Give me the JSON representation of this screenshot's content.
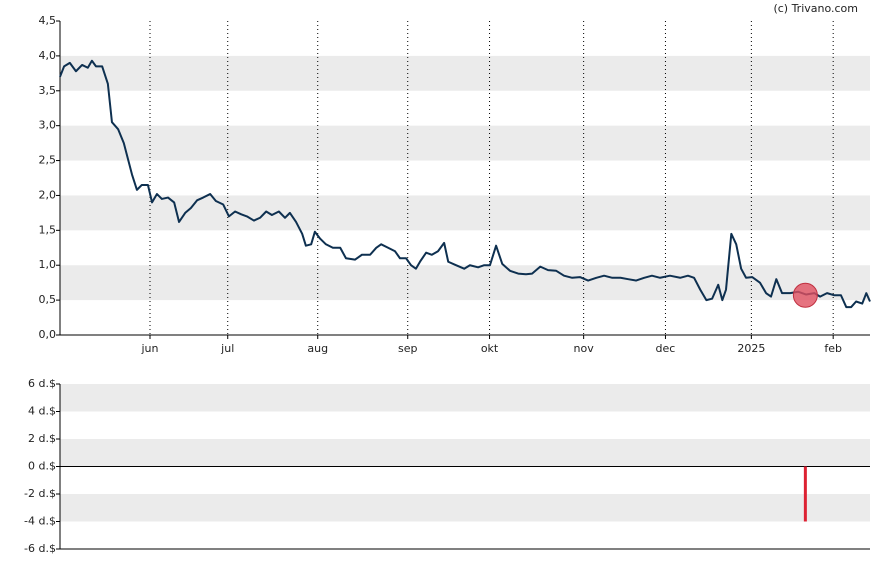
{
  "credit": "(c) Trivano.com",
  "chart_data": [
    {
      "type": "line",
      "x": [
        0,
        1,
        2.4,
        3.9,
        5.4,
        6.8,
        7.8,
        8.8,
        10.3,
        11.7,
        12.7,
        14.2,
        15.6,
        17.6,
        18.8,
        20,
        21.5,
        22.5,
        23.7,
        24.9,
        26.4,
        27.9,
        29.1,
        30.6,
        32,
        33.5,
        35,
        36.7,
        38.1,
        39.9,
        41.3,
        42.8,
        44.3,
        45.7,
        47.4,
        48.9,
        50.4,
        51.8,
        53.5,
        55,
        56.2,
        57.7,
        59.2,
        60.1,
        61.4,
        62.3,
        63.6,
        65,
        66.7,
        68.5,
        69.9,
        72.1,
        73.8,
        75.8,
        77.3,
        78.5,
        80.2,
        81.9,
        83.1,
        84.6,
        85.8,
        87,
        88,
        89.5,
        90.9,
        92.4,
        93.9,
        94.9,
        96.8,
        98.8,
        100.2,
        102.2,
        103.7,
        105.1,
        106.6,
        108.1,
        110,
        112,
        113.9,
        115.4,
        117.4,
        119.3,
        121.3,
        123.2,
        125.2,
        127.1,
        129.1,
        131.1,
        133,
        135,
        137,
        138.9,
        140.8,
        142.8,
        144.7,
        146.7,
        149.1,
        151.6,
        153.5,
        155,
        156.5,
        158,
        159.4,
        160.9,
        161.9,
        162.8,
        164.1,
        165.3,
        166.5,
        167.7,
        169.2,
        171.1,
        172.6,
        173.8,
        175.1,
        176.5,
        178.5,
        180.4,
        182.4,
        184.4,
        185.8,
        187.5,
        189.2,
        190.9,
        192.2,
        193.4,
        194.6,
        196.1,
        197.1,
        198
      ],
      "series": [
        {
          "color": "#0e3050",
          "values": [
            3.7,
            3.85,
            3.9,
            3.78,
            3.87,
            3.83,
            3.93,
            3.85,
            3.85,
            3.6,
            3.05,
            2.95,
            2.75,
            2.3,
            2.08,
            2.15,
            2.15,
            1.9,
            2.02,
            1.95,
            1.97,
            1.9,
            1.62,
            1.75,
            1.82,
            1.93,
            1.97,
            2.02,
            1.92,
            1.87,
            1.7,
            1.77,
            1.73,
            1.7,
            1.64,
            1.68,
            1.77,
            1.72,
            1.77,
            1.68,
            1.75,
            1.62,
            1.45,
            1.28,
            1.3,
            1.48,
            1.38,
            1.3,
            1.25,
            1.25,
            1.1,
            1.08,
            1.15,
            1.15,
            1.25,
            1.3,
            1.25,
            1.2,
            1.1,
            1.1,
            1.0,
            0.95,
            1.05,
            1.18,
            1.15,
            1.2,
            1.32,
            1.05,
            1.0,
            0.95,
            1.0,
            0.97,
            1.0,
            1.0,
            1.28,
            1.02,
            0.92,
            0.88,
            0.87,
            0.88,
            0.98,
            0.93,
            0.92,
            0.85,
            0.82,
            0.83,
            0.78,
            0.82,
            0.85,
            0.82,
            0.82,
            0.8,
            0.78,
            0.82,
            0.85,
            0.82,
            0.85,
            0.82,
            0.85,
            0.82,
            0.65,
            0.5,
            0.52,
            0.72,
            0.5,
            0.65,
            1.45,
            1.3,
            0.95,
            0.82,
            0.83,
            0.75,
            0.6,
            0.55,
            0.8,
            0.6,
            0.6,
            0.62,
            0.58,
            0.6,
            0.55,
            0.6,
            0.57,
            0.57,
            0.4,
            0.4,
            0.48,
            0.45,
            0.6,
            0.48
          ]
        }
      ],
      "marker": {
        "x": 182.2,
        "y": 0.57,
        "color": "#e05060"
      },
      "xlim": [
        0,
        198
      ],
      "xticks": [
        {
          "value": 22,
          "label": "jun"
        },
        {
          "value": 41,
          "label": "jul"
        },
        {
          "value": 63,
          "label": "aug"
        },
        {
          "value": 85,
          "label": "sep"
        },
        {
          "value": 105,
          "label": "okt"
        },
        {
          "value": 128,
          "label": "nov"
        },
        {
          "value": 148,
          "label": "dec"
        },
        {
          "value": 169,
          "label": "2025"
        },
        {
          "value": 189,
          "label": "feb"
        }
      ],
      "ylim": [
        0,
        4.5
      ],
      "yticks": [
        {
          "value": 0,
          "label": "0,0"
        },
        {
          "value": 0.5,
          "label": "0,5"
        },
        {
          "value": 1,
          "label": "1,0"
        },
        {
          "value": 1.5,
          "label": "1,5"
        },
        {
          "value": 2,
          "label": "2,0"
        },
        {
          "value": 2.5,
          "label": "2,5"
        },
        {
          "value": 3,
          "label": "3,0"
        },
        {
          "value": 3.5,
          "label": "3,5"
        },
        {
          "value": 4,
          "label": "4,0"
        },
        {
          "value": 4.5,
          "label": "4,5"
        }
      ],
      "grid": "bands"
    },
    {
      "type": "bar",
      "x": [
        182.2
      ],
      "values": [
        -4
      ],
      "color": "#dd2233",
      "xlim": [
        0,
        198
      ],
      "ylim": [
        -6,
        6
      ],
      "yticks": [
        {
          "value": -6,
          "label": "-6 d.$"
        },
        {
          "value": -4,
          "label": "-4 d.$"
        },
        {
          "value": -2,
          "label": "-2 d.$"
        },
        {
          "value": 0,
          "label": "0 d.$"
        },
        {
          "value": 2,
          "label": "2 d.$"
        },
        {
          "value": 4,
          "label": "4 d.$"
        },
        {
          "value": 6,
          "label": "6 d.$"
        }
      ],
      "grid": "bands"
    }
  ]
}
